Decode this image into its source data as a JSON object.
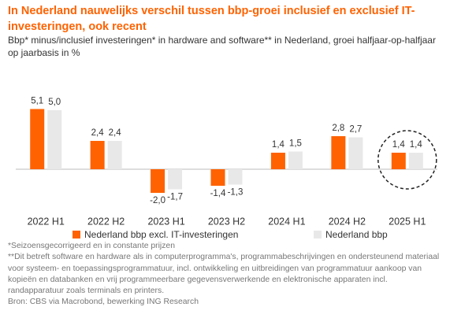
{
  "chart_data": {
    "type": "bar",
    "title": "In Nederland nauwelijks verschil tussen bbp-groei inclusief en exclusief IT-investeringen, ook recent",
    "subtitle": "Bbp* minus/inclusief investeringen* in hardware and software** in Nederland, groei halfjaar-op-halfjaar op jaarbasis in %",
    "categories": [
      "2022 H1",
      "2022 H2",
      "2023 H1",
      "2023 H2",
      "2024 H1",
      "2024 H2",
      "2025 H1"
    ],
    "series": [
      {
        "name": "Nederland bbp excl. IT-investeringen",
        "color": "#ff6200",
        "values": [
          5.1,
          2.4,
          -2.0,
          -1.4,
          1.4,
          2.8,
          1.4
        ],
        "value_labels": [
          "5,1",
          "2,4",
          "-2,0",
          "-1,4",
          "1,4",
          "2,8",
          "1,4"
        ]
      },
      {
        "name": "Nederland bbp",
        "color": "#e8e8e8",
        "values": [
          5.0,
          2.4,
          -1.7,
          -1.3,
          1.5,
          2.7,
          1.4
        ],
        "value_labels": [
          "5,0",
          "2,4",
          "-1,7",
          "-1,3",
          "1,5",
          "2,7",
          "1,4"
        ]
      }
    ],
    "ylim": [
      -3,
      7
    ],
    "notes": [
      "*Seizoensgecorrigeerd en in constante prijzen",
      "**Dit betreft software en hardware als in computerprogramma's, programmabeschrijvingen en ondersteunend materiaal voor systeem- en toepassingsprogrammatuur, incl. ontwikkeling en uitbreidingen van programmatuur aankoop van kopieën en databanken en vrij programmeerbare gegevensverwerkende en elektronische apparaten incl. randapparatuur zoals terminals en printers.",
      "Bron: CBS via Macrobond, bewerking ING Research"
    ]
  }
}
